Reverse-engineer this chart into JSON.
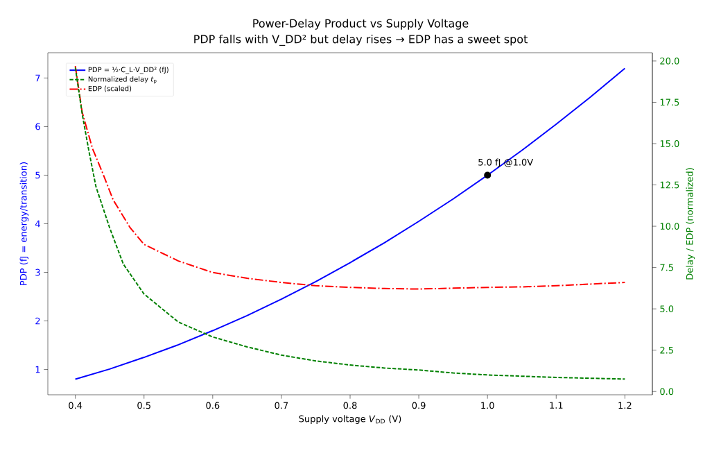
{
  "chart_data": {
    "type": "line",
    "title": "Power-Delay Product vs Supply Voltage",
    "subtitle": "PDP falls with V_DD² but delay rises → EDP has a sweet spot",
    "xlabel": "Supply voltage  *V*$_{DD}$  (V)",
    "ylabel": "PDP  (fJ = energy/transition)",
    "y2label": "Delay / EDP (normalized)",
    "xlim": [
      0.36,
      1.24
    ],
    "xticks": [
      0.4,
      0.5,
      0.6,
      0.7,
      0.8,
      0.9,
      {
        "value": 1.0,
        "label": "1.0"
      },
      1.1,
      1.2
    ],
    "ylim": [
      0.48,
      7.52
    ],
    "yticks": [
      1,
      2,
      3,
      4,
      5,
      6,
      7
    ],
    "y2lim": [
      -0.2,
      20.5
    ],
    "y2ticks": [
      {
        "value": 0,
        "label": "0.0"
      },
      {
        "value": 2.5,
        "label": "2.5"
      },
      {
        "value": 5,
        "label": "5.0"
      },
      {
        "value": 7.5,
        "label": "7.5"
      },
      {
        "value": 10,
        "label": "10.0"
      },
      {
        "value": 12.5,
        "label": "12.5"
      },
      {
        "value": 15,
        "label": "15.0"
      },
      {
        "value": 17.5,
        "label": "17.5"
      },
      {
        "value": 20,
        "label": "20.0"
      }
    ],
    "legend": "top left",
    "series": [
      {
        "name": "PDP = ½·C_L·V_DD²  (fJ)",
        "color": "#0000ff",
        "line_style": "solid",
        "x": [
          0.4,
          0.45,
          0.5,
          0.55,
          0.6,
          0.65,
          0.7,
          0.75,
          0.8,
          0.85,
          0.9,
          0.95,
          1.0,
          1.05,
          1.1,
          1.15,
          1.2
        ],
        "values": [
          0.8,
          1.01,
          1.25,
          1.51,
          1.8,
          2.11,
          2.45,
          2.81,
          3.2,
          3.61,
          4.05,
          4.51,
          5.0,
          5.51,
          6.05,
          6.61,
          7.2
        ]
      },
      {
        "name": "Normalized delay *t*$_{p}$",
        "color": "#008000",
        "line_style": "dashed",
        "axis": "y2",
        "x": [
          0.4,
          0.41,
          0.42,
          0.43,
          0.45,
          0.47,
          0.5,
          0.55,
          0.6,
          0.65,
          0.7,
          0.75,
          0.8,
          0.85,
          0.9,
          0.95,
          1.0,
          1.1,
          1.2
        ],
        "values": [
          19.6,
          16.8,
          14.5,
          12.4,
          9.9,
          7.7,
          5.9,
          4.2,
          3.3,
          2.7,
          2.2,
          1.85,
          1.6,
          1.42,
          1.3,
          1.12,
          1.0,
          0.85,
          0.75
        ]
      },
      {
        "name": "EDP (scaled)",
        "color": "#ff0000",
        "line_style": "dashdot",
        "axis": "y2",
        "x": [
          0.4,
          0.41,
          0.425,
          0.44,
          0.455,
          0.48,
          0.5,
          0.55,
          0.6,
          0.65,
          0.7,
          0.75,
          0.8,
          0.85,
          0.9,
          0.95,
          1.0,
          1.05,
          1.1,
          1.15,
          1.2
        ],
        "values": [
          19.7,
          16.9,
          14.7,
          13.2,
          11.6,
          9.9,
          8.9,
          7.9,
          7.2,
          6.85,
          6.6,
          6.4,
          6.3,
          6.23,
          6.2,
          6.25,
          6.3,
          6.33,
          6.4,
          6.5,
          6.6
        ]
      },
      {
        "type": "scatter",
        "color": "#000000",
        "marker": "circle",
        "x": [
          1.0
        ],
        "values": [
          5.0
        ]
      }
    ],
    "annotations": [
      {
        "text": "5.0 fJ @1.0V",
        "x": 1.0,
        "y": 5.0
      }
    ]
  }
}
